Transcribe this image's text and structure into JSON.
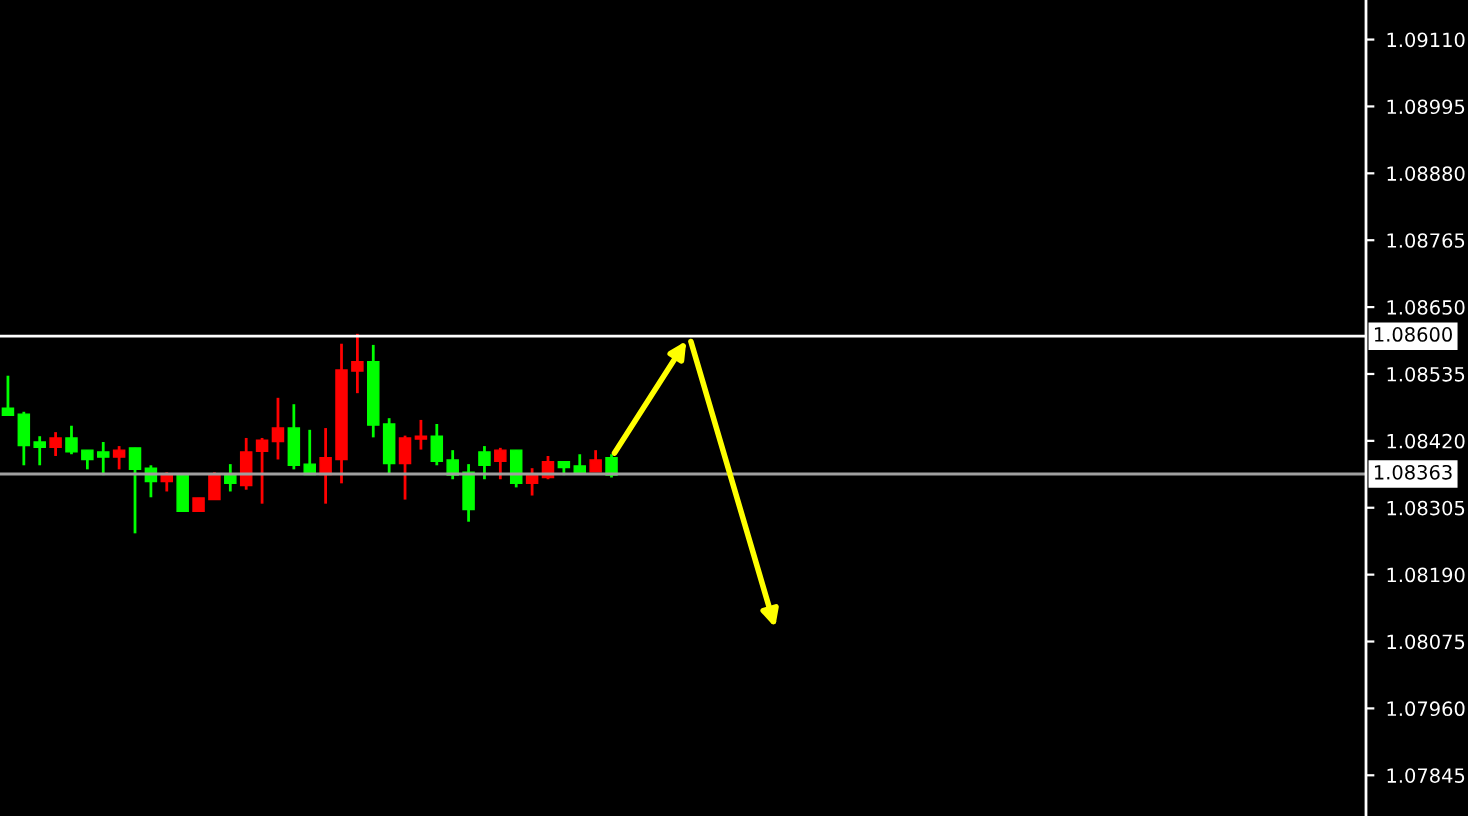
{
  "chart_data": {
    "type": "candlestick",
    "categories": [
      null,
      null,
      null,
      null,
      null,
      null,
      null,
      null,
      null,
      null,
      null,
      null,
      null,
      null,
      null,
      null,
      null,
      null,
      null,
      null,
      null,
      null,
      null,
      null,
      null,
      null,
      null,
      null,
      null,
      null,
      null,
      null,
      null,
      null,
      null,
      null,
      null,
      null,
      null,
      null,
      null,
      null,
      null,
      null,
      null,
      null,
      null,
      null,
      null,
      null,
      null,
      null,
      null,
      null,
      null,
      null,
      null,
      null,
      null,
      null,
      null,
      null,
      null,
      null,
      null,
      null,
      null,
      null,
      null,
      null,
      null,
      null,
      null,
      null,
      null,
      null,
      null,
      null,
      null,
      null,
      null,
      null,
      null,
      null,
      null,
      null
    ],
    "ohlc": [
      [
        1.08464,
        1.08532,
        1.08464,
        1.08476
      ],
      [
        1.08412,
        1.0847,
        1.08378,
        1.08466
      ],
      [
        1.08409,
        1.08428,
        1.08378,
        1.08418
      ],
      [
        1.08425,
        1.08435,
        1.08394,
        1.08409
      ],
      [
        1.08401,
        1.08446,
        1.08397,
        1.08425
      ],
      [
        1.08388,
        1.08404,
        1.08371,
        1.08404
      ],
      [
        1.08392,
        1.08418,
        1.08361,
        1.08401
      ],
      [
        1.08404,
        1.08411,
        1.08371,
        1.08392
      ],
      [
        1.08371,
        1.08408,
        1.08261,
        1.08408
      ],
      [
        1.0835,
        1.08378,
        1.08323,
        1.08373
      ],
      [
        1.0836,
        1.08366,
        1.08333,
        1.0835
      ],
      [
        1.08299,
        1.08361,
        1.08299,
        1.08361
      ],
      [
        1.08322,
        1.08322,
        1.08299,
        1.08299
      ],
      [
        1.08363,
        1.08366,
        1.08319,
        1.08319
      ],
      [
        1.08347,
        1.0838,
        1.08333,
        1.08363
      ],
      [
        1.08401,
        1.08425,
        1.08336,
        1.08343
      ],
      [
        1.08421,
        1.08425,
        1.08312,
        1.08402
      ],
      [
        1.08442,
        1.08494,
        1.08388,
        1.08419
      ],
      [
        1.08378,
        1.08483,
        1.08371,
        1.08442
      ],
      [
        1.08362,
        1.08439,
        1.08362,
        1.0838
      ],
      [
        1.08391,
        1.08442,
        1.08312,
        1.08362
      ],
      [
        1.08542,
        1.08587,
        1.08347,
        1.08388
      ],
      [
        1.08556,
        1.08604,
        1.08502,
        1.0854
      ],
      [
        1.08447,
        1.08585,
        1.08426,
        1.08556
      ],
      [
        1.08381,
        1.08459,
        1.08363,
        1.08449
      ],
      [
        1.08425,
        1.08429,
        1.08319,
        1.08381
      ],
      [
        1.08428,
        1.08456,
        1.08405,
        1.08423
      ],
      [
        1.08385,
        1.08449,
        1.08378,
        1.08428
      ],
      [
        1.08361,
        1.08404,
        1.08354,
        1.08387
      ],
      [
        1.08302,
        1.0838,
        1.08281,
        1.08366
      ],
      [
        1.08378,
        1.08411,
        1.08354,
        1.08401
      ],
      [
        1.08404,
        1.08408,
        1.08354,
        1.08385
      ],
      [
        1.08347,
        1.08404,
        1.0834,
        1.08404
      ],
      [
        1.08361,
        1.08373,
        1.08326,
        1.08347
      ],
      [
        1.08384,
        1.08394,
        1.08354,
        1.08357
      ],
      [
        1.08374,
        1.08384,
        1.08361,
        1.08384
      ],
      [
        1.08366,
        1.08397,
        1.08366,
        1.08377
      ],
      [
        1.08387,
        1.08404,
        1.08367,
        1.08367
      ],
      [
        1.08361,
        1.08397,
        1.08357,
        1.08391
      ],
      null,
      null,
      null,
      null,
      null,
      null,
      null,
      null,
      null,
      null,
      null,
      null,
      null,
      null,
      null,
      null,
      null,
      null,
      null,
      null,
      null,
      null,
      null,
      null,
      null,
      null,
      null,
      null,
      null,
      null,
      null,
      null,
      null,
      null,
      null,
      null,
      null,
      null,
      null,
      null,
      null,
      null,
      null,
      null,
      null,
      null,
      null
    ],
    "colors": [
      "#00ff00",
      "#00ff00",
      "#00ff00",
      "#ff0000",
      "#00ff00",
      "#00ff00",
      "#00ff00",
      "#ff0000",
      "#00ff00",
      "#00ff00",
      "#ff0000",
      "#00ff00",
      "#ff0000",
      "#ff0000",
      "#00ff00",
      "#ff0000",
      "#ff0000",
      "#ff0000",
      "#00ff00",
      "#00ff00",
      "#ff0000",
      "#ff0000",
      "#ff0000",
      "#00ff00",
      "#00ff00",
      "#ff0000",
      "#ff0000",
      "#00ff00",
      "#00ff00",
      "#00ff00",
      "#00ff00",
      "#ff0000",
      "#00ff00",
      "#ff0000",
      "#ff0000",
      "#00ff00",
      "#00ff00",
      "#ff0000",
      "#00ff00",
      null,
      null,
      null,
      null,
      null,
      null,
      null,
      null,
      null,
      null,
      null,
      null,
      null,
      null,
      null,
      null,
      null,
      null,
      null,
      null,
      null,
      null,
      null,
      null,
      null,
      null,
      null,
      null,
      null,
      null,
      null,
      null,
      null,
      null,
      null,
      null,
      null,
      null,
      null,
      null,
      null,
      null,
      null,
      null,
      null,
      null,
      null
    ],
    "ylim": [
      1.07775,
      1.09178
    ],
    "yticks": [
      {
        "value": 1.0911,
        "label": "1.09110"
      },
      {
        "value": 1.08995,
        "label": "1.08995"
      },
      {
        "value": 1.0888,
        "label": "1.08880"
      },
      {
        "value": 1.08765,
        "label": "1.08765"
      },
      {
        "value": 1.0865,
        "label": "1.08650"
      },
      {
        "value": 1.08535,
        "label": "1.08535"
      },
      {
        "value": 1.0842,
        "label": "1.08420"
      },
      {
        "value": 1.08305,
        "label": "1.08305"
      },
      {
        "value": 1.0819,
        "label": "1.08190"
      },
      {
        "value": 1.08075,
        "label": "1.08075"
      },
      {
        "value": 1.0796,
        "label": "1.07960"
      },
      {
        "value": 1.07845,
        "label": "1.07845"
      }
    ],
    "ref_lines": [
      {
        "axis": "y",
        "value": 1.086,
        "label": "1.08600",
        "color": "#ffffff"
      },
      {
        "axis": "y",
        "value": 1.08363,
        "label": "1.08363",
        "color": "#a0a0a0"
      }
    ],
    "tick_labels": "y"
  }
}
